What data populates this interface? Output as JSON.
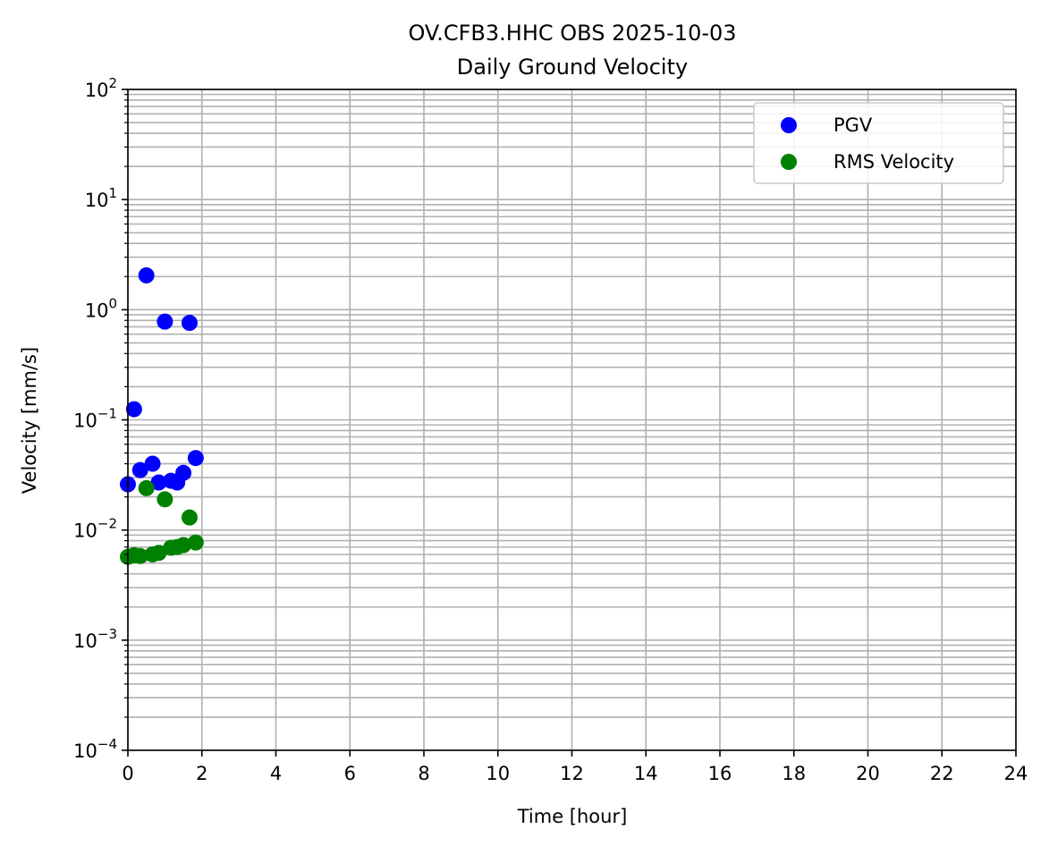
{
  "chart_data": {
    "type": "scatter",
    "title": "OV.CFB3.HHC OBS 2025-10-03",
    "subtitle": "Daily Ground Velocity",
    "xlabel": "Time [hour]",
    "ylabel": "Velocity [mm/s]",
    "xlim": [
      0,
      24
    ],
    "ylim": [
      0.0001,
      100
    ],
    "yscale": "log",
    "xticks": [
      0,
      2,
      4,
      6,
      8,
      10,
      12,
      14,
      16,
      18,
      20,
      22,
      24
    ],
    "yticks": [
      {
        "base": "10",
        "exp": "−4",
        "value": 0.0001
      },
      {
        "base": "10",
        "exp": "−3",
        "value": 0.001
      },
      {
        "base": "10",
        "exp": "−2",
        "value": 0.01
      },
      {
        "base": "10",
        "exp": "−1",
        "value": 0.1
      },
      {
        "base": "10",
        "exp": "0",
        "value": 1
      },
      {
        "base": "10",
        "exp": "1",
        "value": 10
      },
      {
        "base": "10",
        "exp": "2",
        "value": 100
      }
    ],
    "grid": "major and minor",
    "legend_position": "top-right",
    "series": [
      {
        "name": "PGV",
        "color": "#0000ff",
        "x": [
          0.0,
          0.1667,
          0.3333,
          0.5,
          0.6667,
          0.8333,
          1.0,
          1.1667,
          1.3333,
          1.5,
          1.6667,
          1.8333
        ],
        "y": [
          0.026,
          0.125,
          0.035,
          2.05,
          0.04,
          0.027,
          0.78,
          0.028,
          0.027,
          0.033,
          0.76,
          0.045
        ]
      },
      {
        "name": "RMS Velocity",
        "color": "#008000",
        "x": [
          0.0,
          0.1667,
          0.3333,
          0.5,
          0.6667,
          0.8333,
          1.0,
          1.1667,
          1.3333,
          1.5,
          1.6667,
          1.8333
        ],
        "y": [
          0.0057,
          0.0059,
          0.0058,
          0.024,
          0.006,
          0.0062,
          0.019,
          0.0069,
          0.007,
          0.0073,
          0.013,
          0.0077
        ]
      }
    ]
  }
}
